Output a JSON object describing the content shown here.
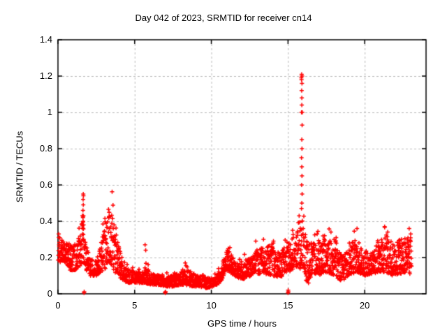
{
  "chart_data": {
    "type": "scatter",
    "title": "Day 042 of 2023, SRMTID for receiver cn14",
    "xlabel": "GPS time / hours",
    "ylabel": "SRMTID / TECUs",
    "xlim": [
      0,
      24
    ],
    "ylim": [
      0,
      1.4
    ],
    "xticks": {
      "values": [
        0,
        5,
        10,
        15,
        20
      ],
      "labels": [
        "0",
        "5",
        "10",
        "15",
        "20"
      ]
    },
    "yticks": {
      "values": [
        0,
        0.2,
        0.4,
        0.6,
        0.8,
        1.0,
        1.2,
        1.4
      ],
      "labels": [
        "0",
        "0.2",
        "0.4",
        "0.6",
        "0.8",
        "1",
        "1.2",
        "1.4"
      ]
    },
    "grid": true,
    "legend": false,
    "marker": {
      "shape": "plus",
      "color": "#ff0000",
      "size": 7
    },
    "grid_color": "#b9b9b9",
    "axis_color": "#000000",
    "series_name": "SRMTID",
    "sampling": {
      "t_start": 0.02,
      "t_end": 23.05,
      "dt": 0.0095,
      "seed": 1337
    },
    "envelope": [
      [
        0.0,
        0.17,
        0.33
      ],
      [
        0.4,
        0.18,
        0.3
      ],
      [
        0.8,
        0.13,
        0.27
      ],
      [
        1.2,
        0.13,
        0.28
      ],
      [
        1.5,
        0.16,
        0.35
      ],
      [
        1.63,
        0.2,
        0.5
      ],
      [
        1.75,
        0.14,
        0.3
      ],
      [
        2.1,
        0.1,
        0.2
      ],
      [
        2.5,
        0.1,
        0.19
      ],
      [
        2.8,
        0.12,
        0.28
      ],
      [
        3.1,
        0.14,
        0.4
      ],
      [
        3.3,
        0.18,
        0.5
      ],
      [
        3.55,
        0.15,
        0.46
      ],
      [
        3.8,
        0.1,
        0.32
      ],
      [
        4.1,
        0.08,
        0.22
      ],
      [
        4.5,
        0.06,
        0.15
      ],
      [
        5.0,
        0.06,
        0.13
      ],
      [
        5.45,
        0.06,
        0.12
      ],
      [
        5.7,
        0.06,
        0.18
      ],
      [
        6.0,
        0.05,
        0.12
      ],
      [
        6.5,
        0.05,
        0.1
      ],
      [
        7.0,
        0.04,
        0.1
      ],
      [
        7.5,
        0.04,
        0.1
      ],
      [
        8.0,
        0.05,
        0.12
      ],
      [
        8.3,
        0.05,
        0.16
      ],
      [
        8.7,
        0.04,
        0.12
      ],
      [
        9.2,
        0.04,
        0.1
      ],
      [
        9.7,
        0.03,
        0.09
      ],
      [
        10.1,
        0.04,
        0.09
      ],
      [
        10.6,
        0.06,
        0.13
      ],
      [
        10.9,
        0.12,
        0.23
      ],
      [
        11.2,
        0.12,
        0.24
      ],
      [
        11.6,
        0.09,
        0.19
      ],
      [
        12.1,
        0.08,
        0.18
      ],
      [
        12.6,
        0.1,
        0.2
      ],
      [
        13.0,
        0.11,
        0.24
      ],
      [
        13.5,
        0.11,
        0.27
      ],
      [
        14.0,
        0.1,
        0.26
      ],
      [
        14.5,
        0.09,
        0.22
      ],
      [
        15.0,
        0.12,
        0.28
      ],
      [
        15.5,
        0.14,
        0.33
      ],
      [
        15.7,
        0.15,
        0.45
      ],
      [
        15.95,
        0.12,
        0.4
      ],
      [
        16.3,
        0.05,
        0.28
      ],
      [
        16.6,
        0.12,
        0.28
      ],
      [
        17.0,
        0.1,
        0.3
      ],
      [
        17.5,
        0.12,
        0.31
      ],
      [
        18.0,
        0.1,
        0.28
      ],
      [
        18.5,
        0.07,
        0.22
      ],
      [
        19.0,
        0.1,
        0.26
      ],
      [
        19.5,
        0.12,
        0.3
      ],
      [
        20.0,
        0.1,
        0.23
      ],
      [
        20.5,
        0.11,
        0.23
      ],
      [
        21.0,
        0.12,
        0.3
      ],
      [
        21.35,
        0.12,
        0.34
      ],
      [
        21.8,
        0.1,
        0.26
      ],
      [
        22.3,
        0.11,
        0.3
      ],
      [
        22.7,
        0.12,
        0.33
      ],
      [
        23.05,
        0.1,
        0.3
      ]
    ],
    "spike_points": [
      [
        1.62,
        0.36
      ],
      [
        1.64,
        0.4
      ],
      [
        1.66,
        0.43
      ],
      [
        1.63,
        0.46
      ],
      [
        1.65,
        0.49
      ],
      [
        1.64,
        0.52
      ],
      [
        1.66,
        0.54
      ],
      [
        1.65,
        0.55
      ],
      [
        1.63,
        0.42
      ],
      [
        1.67,
        0.38
      ],
      [
        1.61,
        0.33
      ],
      [
        1.68,
        0.3
      ],
      [
        15.88,
        0.47
      ],
      [
        15.9,
        0.5
      ],
      [
        15.92,
        0.55
      ],
      [
        15.89,
        0.6
      ],
      [
        15.91,
        0.65
      ],
      [
        15.9,
        0.7
      ],
      [
        15.88,
        0.75
      ],
      [
        15.91,
        0.8
      ],
      [
        15.9,
        0.85
      ],
      [
        15.92,
        0.93
      ],
      [
        15.88,
        1.0
      ],
      [
        15.93,
        1.0
      ],
      [
        15.9,
        1.04
      ],
      [
        15.9,
        1.08
      ],
      [
        15.89,
        1.12
      ],
      [
        15.91,
        1.16
      ],
      [
        15.87,
        1.19
      ],
      [
        15.9,
        1.2
      ],
      [
        15.92,
        1.2
      ],
      [
        15.89,
        1.21
      ],
      [
        15.88,
        1.18
      ]
    ],
    "zero_points": [
      [
        1.7,
        0.005
      ],
      [
        1.71,
        0.012
      ],
      [
        7.0,
        0.005
      ],
      [
        7.02,
        0.012
      ],
      [
        6.98,
        0.008
      ],
      [
        15.0,
        0.005
      ],
      [
        15.02,
        0.012
      ],
      [
        15.01,
        0.02
      ]
    ],
    "extra_points": [
      [
        0.05,
        0.33
      ],
      [
        5.68,
        0.27
      ],
      [
        5.72,
        0.24
      ],
      [
        8.3,
        0.17
      ],
      [
        11.05,
        0.24
      ],
      [
        12.9,
        0.29
      ],
      [
        13.4,
        0.3
      ],
      [
        14.05,
        0.29
      ],
      [
        15.3,
        0.35
      ],
      [
        16.9,
        0.33
      ],
      [
        17.8,
        0.34
      ],
      [
        18.0,
        0.3
      ],
      [
        19.5,
        0.36
      ],
      [
        21.3,
        0.37
      ],
      [
        21.5,
        0.34
      ],
      [
        22.4,
        0.3
      ],
      [
        22.9,
        0.36
      ],
      [
        23.0,
        0.33
      ]
    ]
  }
}
